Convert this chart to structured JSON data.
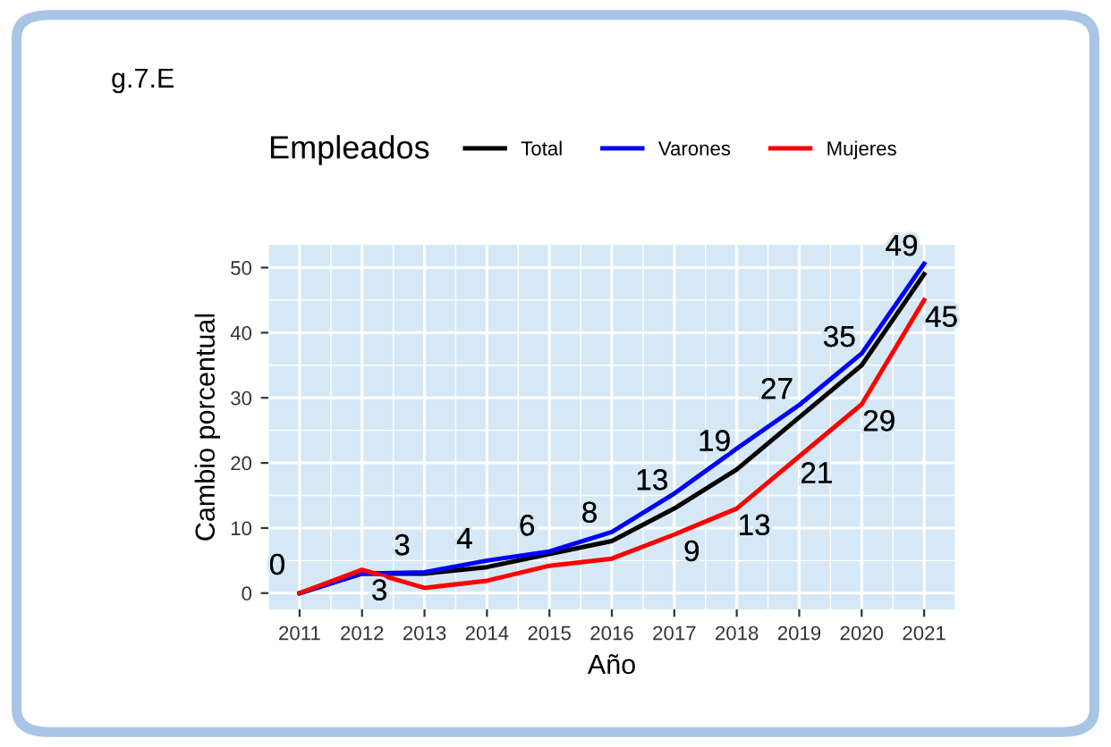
{
  "chart_data": {
    "type": "line",
    "title": "g.7.E",
    "xlabel": "Año",
    "ylabel": "Cambio porcentual",
    "legend_title": "Empleados",
    "categories": [
      "2011",
      "2012",
      "2013",
      "2014",
      "2015",
      "2016",
      "2017",
      "2018",
      "2019",
      "2020",
      "2021"
    ],
    "series": [
      {
        "name": "Total",
        "color": "#000000",
        "values": [
          0,
          3,
          3,
          4,
          6,
          8,
          13,
          19,
          27,
          35,
          49
        ],
        "value_labels": [
          "0",
          "3",
          "3",
          "4",
          "6",
          "8",
          "13",
          "19",
          "27",
          "35",
          "49"
        ]
      },
      {
        "name": "Varones",
        "color": "#0000ff",
        "values": [
          0,
          3.0,
          3.2,
          5.0,
          6.4,
          9.4,
          15.3,
          22.2,
          28.9,
          36.8,
          50.6
        ]
      },
      {
        "name": "Mujeres",
        "color": "#ff0000",
        "values": [
          0,
          3.6,
          0.8,
          1.9,
          4.2,
          5.3,
          9,
          13,
          21,
          29,
          45
        ],
        "value_labels": [
          null,
          null,
          null,
          null,
          null,
          null,
          "9",
          "13",
          "21",
          "29",
          "45"
        ]
      }
    ],
    "ylim": [
      -2.5,
      53.5
    ],
    "yticks": [
      0,
      10,
      20,
      30,
      40,
      50
    ],
    "grid": true,
    "legend": "top",
    "line_style": "solid",
    "marker": "none"
  }
}
